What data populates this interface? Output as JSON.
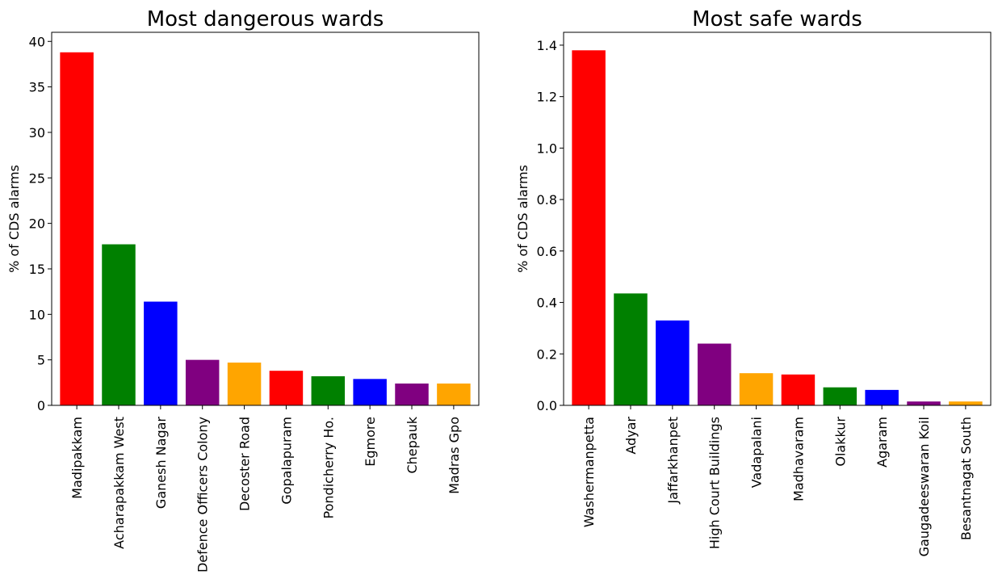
{
  "chart_data": [
    {
      "type": "bar",
      "title": "Most dangerous wards",
      "xlabel": "",
      "ylabel": "% of CDS alarms",
      "ylim": [
        0,
        41
      ],
      "yticks": [
        0,
        5,
        10,
        15,
        20,
        25,
        30,
        35,
        40
      ],
      "categories": [
        "Madipakkam",
        "Acharapakkam West",
        "Ganesh Nagar",
        "Defence Officers Colony",
        "Decoster Road",
        "Gopalapuram",
        "Pondicherry Ho.",
        "Egmore",
        "Chepauk",
        "Madras Gpo"
      ],
      "values": [
        38.8,
        17.7,
        11.4,
        5.0,
        4.7,
        3.8,
        3.2,
        2.9,
        2.4,
        2.4
      ],
      "colors": [
        "#ff0000",
        "#008000",
        "#0000ff",
        "#800080",
        "#ffa500",
        "#ff0000",
        "#008000",
        "#0000ff",
        "#800080",
        "#ffa500"
      ],
      "grid": false
    },
    {
      "type": "bar",
      "title": "Most safe wards",
      "xlabel": "",
      "ylabel": "% of CDS alarms",
      "ylim": [
        0,
        1.45
      ],
      "yticks": [
        0.0,
        0.2,
        0.4,
        0.6,
        0.8,
        1.0,
        1.2,
        1.4
      ],
      "yticks_labels": [
        "0.0",
        "0.2",
        "0.4",
        "0.6",
        "0.8",
        "1.0",
        "1.2",
        "1.4"
      ],
      "categories": [
        "Washermanpetta",
        "Adyar",
        "Jaffarkhanpet",
        "High Court Buildings",
        "Vadapalani",
        "Madhavaram",
        "Olakkur",
        "Agaram",
        "Gaugadeeswaran Koil",
        "Besantnagat South"
      ],
      "values": [
        1.38,
        0.435,
        0.33,
        0.24,
        0.125,
        0.12,
        0.07,
        0.06,
        0.015,
        0.015
      ],
      "colors": [
        "#ff0000",
        "#008000",
        "#0000ff",
        "#800080",
        "#ffa500",
        "#ff0000",
        "#008000",
        "#0000ff",
        "#800080",
        "#ffa500"
      ],
      "grid": false
    }
  ]
}
